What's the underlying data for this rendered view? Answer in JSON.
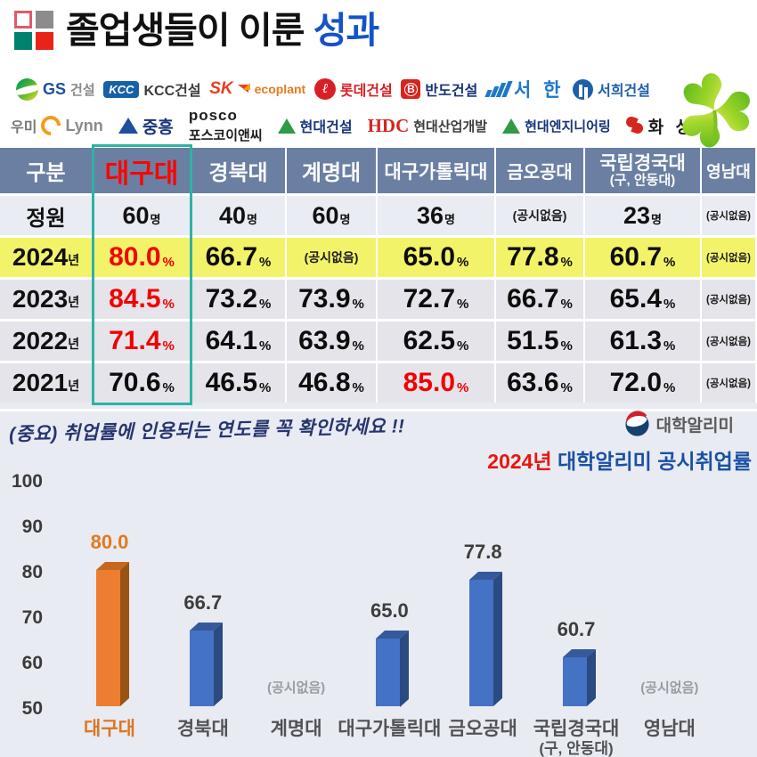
{
  "title": {
    "black": "졸업생들이 이룬 ",
    "accent": "성과"
  },
  "logos": {
    "row1": [
      {
        "t1": "GS",
        "t2": "건설"
      },
      {
        "t1": "KCC",
        "t2": "KCC건설"
      },
      {
        "t1": "SK",
        "t2": "ecoplant"
      },
      {
        "t1": "ℓ",
        "t2": "롯데건설"
      },
      {
        "t1": "B",
        "t2": "반도건설"
      },
      {
        "t2": "서 한"
      },
      {
        "t2": "서희건설"
      }
    ],
    "row2": [
      {
        "t1": "우미",
        "t2": "Lynn"
      },
      {
        "t2": "중흥"
      },
      {
        "t1": "posco",
        "t2": "포스코이앤씨"
      },
      {
        "t2": "현대건설"
      },
      {
        "t1": "HDC",
        "t2": "현대산업개발"
      },
      {
        "t2": "현대엔지니어링"
      },
      {
        "t2": "화 성"
      }
    ]
  },
  "table": {
    "header": [
      "구분",
      "대구대",
      "경북대",
      "계명대",
      "대구가톨릭대",
      "금오공대",
      "국립경국대",
      "영남대"
    ],
    "header_sub": "(구, 안동대)",
    "rows": [
      {
        "label": "정원",
        "label_unit": "",
        "cells": [
          {
            "v": "60",
            "u": "명"
          },
          {
            "v": "40",
            "u": "명"
          },
          {
            "v": "60",
            "u": "명"
          },
          {
            "v": "36",
            "u": "명"
          },
          {
            "v": "(공시없음)",
            "u": ""
          },
          {
            "v": "23",
            "u": "명"
          },
          {
            "v": "(공시없음)",
            "u": ""
          }
        ]
      },
      {
        "label": "2024",
        "label_unit": "년",
        "cells": [
          {
            "v": "80.0",
            "u": "%"
          },
          {
            "v": "66.7",
            "u": "%"
          },
          {
            "v": "(공시없음)",
            "u": ""
          },
          {
            "v": "65.0",
            "u": "%"
          },
          {
            "v": "77.8",
            "u": "%"
          },
          {
            "v": "60.7",
            "u": "%"
          },
          {
            "v": "(공시없음)",
            "u": ""
          }
        ]
      },
      {
        "label": "2023",
        "label_unit": "년",
        "cells": [
          {
            "v": "84.5",
            "u": "%"
          },
          {
            "v": "73.2",
            "u": "%"
          },
          {
            "v": "73.9",
            "u": "%"
          },
          {
            "v": "72.7",
            "u": "%"
          },
          {
            "v": "66.7",
            "u": "%"
          },
          {
            "v": "65.4",
            "u": "%"
          },
          {
            "v": "(공시없음)",
            "u": ""
          }
        ]
      },
      {
        "label": "2022",
        "label_unit": "년",
        "cells": [
          {
            "v": "71.4",
            "u": "%"
          },
          {
            "v": "64.1",
            "u": "%"
          },
          {
            "v": "63.9",
            "u": "%"
          },
          {
            "v": "62.5",
            "u": "%"
          },
          {
            "v": "51.5",
            "u": "%"
          },
          {
            "v": "61.3",
            "u": "%"
          },
          {
            "v": "(공시없음)",
            "u": ""
          }
        ]
      },
      {
        "label": "2021",
        "label_unit": "년",
        "cells": [
          {
            "v": "70.6",
            "u": "%"
          },
          {
            "v": "46.5",
            "u": "%"
          },
          {
            "v": "46.8",
            "u": "%"
          },
          {
            "v": "85.0",
            "u": "%"
          },
          {
            "v": "63.6",
            "u": "%"
          },
          {
            "v": "72.0",
            "u": "%"
          },
          {
            "v": "(공시없음)",
            "u": ""
          }
        ]
      }
    ]
  },
  "note": {
    "text": "(중요) 취업률에 인용되는 연도를 꼭 확인하세요 !!"
  },
  "alimi": {
    "label": "대학알리미"
  },
  "chart_title": {
    "year": "2024년",
    "rest": " 대학알리미 공시취업률"
  },
  "chart_data": {
    "type": "bar",
    "title": "2024년 대학알리미 공시취업률",
    "categories": [
      "대구대",
      "경북대",
      "계명대",
      "대구가톨릭대",
      "금오공대",
      "국립경국대",
      "영남대"
    ],
    "cat_sub": [
      "",
      "",
      "",
      "",
      "",
      "(구, 안동대)",
      ""
    ],
    "values": [
      80.0,
      66.7,
      null,
      65.0,
      77.8,
      60.7,
      null
    ],
    "null_label": "(공시없음)",
    "ylim": [
      50,
      100
    ],
    "yticks": [
      100,
      90,
      80,
      70,
      60,
      50
    ],
    "xlabel": "",
    "ylabel": "",
    "grid": false,
    "legend": "none",
    "highlight_index": 0,
    "colors": {
      "highlight": {
        "front": "#ED7D31",
        "top": "#C4681F",
        "side": "#995414",
        "label": "#E2791F"
      },
      "normal": {
        "front": "#4472C4",
        "top": "#36599B",
        "side": "#2B4A82",
        "label": "#3D3D3D"
      }
    }
  },
  "colors": {
    "title_accent": "#1553c8",
    "table_header_bg": "#6a7fa2",
    "row_2024_bg": "#f3f36a",
    "red_value": "#f20000",
    "highlight_border": "#2db3a3",
    "section_bg": "#e8ebf1"
  }
}
